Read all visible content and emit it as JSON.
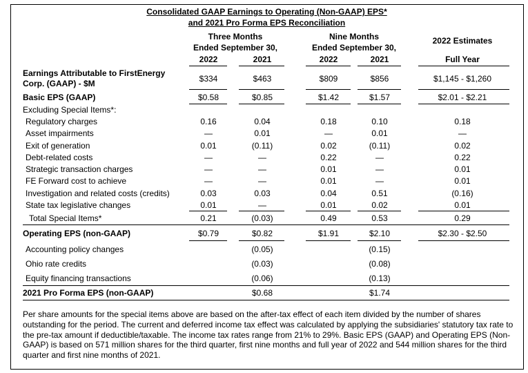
{
  "title_line1": "Consolidated GAAP Earnings to Operating (Non-GAAP) EPS*",
  "title_line2": "and 2021 Pro Forma EPS Reconciliation",
  "headers": {
    "three_months_l1": "Three Months",
    "three_months_l2": "Ended September 30,",
    "nine_months_l1": "Nine Months",
    "nine_months_l2": "Ended September 30,",
    "estimates_l1": "2022 Estimates",
    "estimates_l2": "Full Year",
    "y2022a": "2022",
    "y2021a": "2021",
    "y2022b": "2022",
    "y2021b": "2021"
  },
  "rows": {
    "earnings": {
      "label_l1": "Earnings Attributable to FirstEnergy",
      "label_l2": "Corp. (GAAP) - $M",
      "q22": "$334",
      "q21": "$463",
      "n22": "$809",
      "n21": "$856",
      "est": "$1,145 - $1,260"
    },
    "basic_eps": {
      "label": "Basic EPS (GAAP)",
      "q22": "$0.58",
      "q21": "$0.85",
      "n22": "$1.42",
      "n21": "$1.57",
      "est": "$2.01 - $2.21"
    },
    "excluding": {
      "label": "Excluding Special Items*:"
    },
    "regulatory": {
      "label": "Regulatory charges",
      "q22": "0.16",
      "q21": "0.04",
      "n22": "0.18",
      "n21": "0.10",
      "est": "0.18"
    },
    "asset": {
      "label": "Asset impairments",
      "q22": "—",
      "q21": "0.01",
      "n22": "—",
      "n21": "0.01",
      "est": "—"
    },
    "exit": {
      "label": "Exit of generation",
      "q22": "0.01",
      "q21": "(0.11)",
      "n22": "0.02",
      "n21": "(0.11)",
      "est": "0.02"
    },
    "debt": {
      "label": "Debt-related costs",
      "q22": "—",
      "q21": "—",
      "n22": "0.22",
      "n21": "—",
      "est": "0.22"
    },
    "strategic": {
      "label": "Strategic transaction charges",
      "q22": "—",
      "q21": "—",
      "n22": "0.01",
      "n21": "—",
      "est": "0.01"
    },
    "fe_forward": {
      "label": "FE Forward cost to achieve",
      "q22": "—",
      "q21": "—",
      "n22": "0.01",
      "n21": "—",
      "est": "0.01"
    },
    "investigation": {
      "label": "Investigation and related costs (credits)",
      "q22": "0.03",
      "q21": "0.03",
      "n22": "0.04",
      "n21": "0.51",
      "est": "(0.16)"
    },
    "state_tax": {
      "label": "State tax legislative changes",
      "q22": "0.01",
      "q21": "—",
      "n22": "0.01",
      "n21": "0.02",
      "est": "0.01"
    },
    "total_special": {
      "label": "Total Special Items*",
      "q22": "0.21",
      "q21": "(0.03)",
      "n22": "0.49",
      "n21": "0.53",
      "est": "0.29"
    },
    "operating": {
      "label": "Operating EPS (non-GAAP)",
      "q22": "$0.79",
      "q21": "$0.82",
      "n22": "$1.91",
      "n21": "$2.10",
      "est": "$2.30 - $2.50"
    },
    "accounting": {
      "label": "Accounting policy changes",
      "q21": "(0.05)",
      "n21": "(0.15)"
    },
    "ohio": {
      "label": "Ohio rate credits",
      "q21": "(0.03)",
      "n21": "(0.08)"
    },
    "equity": {
      "label": "Equity financing transactions",
      "q21": "(0.06)",
      "n21": "(0.13)"
    },
    "proforma": {
      "label": "2021 Pro Forma EPS (non-GAAP)",
      "q21": "$0.68",
      "n21": "$1.74"
    }
  },
  "footnote": "Per share amounts for the special items above are based on the after-tax effect of each item divided by the number of shares outstanding for the period. The current and deferred income tax effect was calculated by applying the subsidiaries' statutory tax rate to the pre-tax amount if deductible/taxable. The income tax rates range from 21% to 29%. Basic EPS (GAAP) and Operating EPS (Non-GAAP) is based on 571 million shares for the third quarter, first nine months and full year of 2022 and 544 million shares for the third quarter and first nine months of 2021."
}
